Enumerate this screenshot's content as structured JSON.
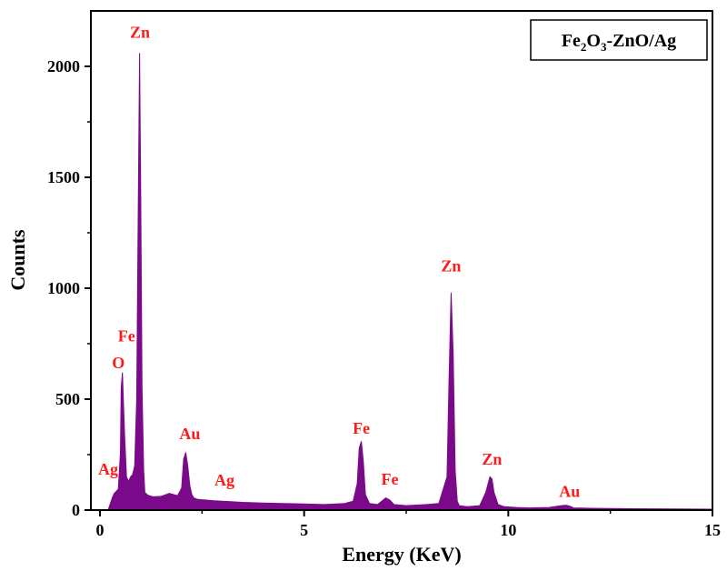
{
  "chart_data": {
    "type": "area",
    "title": "",
    "xlabel": "Energy (KeV)",
    "ylabel": "Counts",
    "xlim": [
      0,
      15
    ],
    "ylim": [
      0,
      2250
    ],
    "xticks": [
      0,
      5,
      10,
      15
    ],
    "yticks": [
      0,
      500,
      1000,
      1500,
      2000
    ],
    "grid": false,
    "legend_position": "top-right",
    "legend": {
      "main": "Fe",
      "sub1": "2",
      "mid": "O",
      "sub2": "3",
      "tail": "-ZnO/Ag"
    },
    "series": [
      {
        "x": [
          0.0,
          0.2,
          0.3,
          0.35,
          0.4,
          0.45,
          0.5,
          0.52,
          0.55,
          0.6,
          0.65,
          0.7,
          0.75,
          0.8,
          0.85,
          0.9,
          0.93,
          0.97,
          1.0,
          1.03,
          1.07,
          1.1,
          1.15,
          1.2,
          1.3,
          1.5,
          1.7,
          1.9,
          2.0,
          2.05,
          2.1,
          2.15,
          2.2,
          2.25,
          2.3,
          2.4,
          2.6,
          2.8,
          3.0,
          3.5,
          4.0,
          4.5,
          5.0,
          5.5,
          6.0,
          6.2,
          6.3,
          6.35,
          6.4,
          6.45,
          6.5,
          6.6,
          6.8,
          6.9,
          7.0,
          7.1,
          7.2,
          7.5,
          8.0,
          8.3,
          8.5,
          8.55,
          8.6,
          8.65,
          8.7,
          8.75,
          8.8,
          9.0,
          9.3,
          9.45,
          9.55,
          9.6,
          9.65,
          9.75,
          9.9,
          10.2,
          10.5,
          11.0,
          11.3,
          11.4,
          11.5,
          11.6,
          12.0,
          13.0,
          14.0,
          15.0
        ],
        "y": [
          0,
          0,
          55,
          75,
          85,
          95,
          260,
          550,
          620,
          350,
          150,
          130,
          150,
          160,
          200,
          500,
          1200,
          2060,
          1400,
          550,
          180,
          80,
          70,
          65,
          60,
          62,
          75,
          65,
          100,
          230,
          260,
          200,
          110,
          70,
          55,
          48,
          45,
          42,
          40,
          35,
          32,
          30,
          28,
          25,
          30,
          40,
          120,
          280,
          310,
          220,
          70,
          30,
          25,
          40,
          55,
          45,
          25,
          20,
          25,
          30,
          150,
          600,
          980,
          700,
          180,
          40,
          20,
          15,
          20,
          80,
          150,
          140,
          80,
          25,
          15,
          12,
          10,
          12,
          20,
          22,
          18,
          10,
          8,
          6,
          5,
          4
        ]
      }
    ],
    "peak_labels": [
      {
        "text": "Zn",
        "x": 0.98,
        "y": 2130
      },
      {
        "text": "Fe",
        "x": 0.65,
        "y": 760
      },
      {
        "text": "O",
        "x": 0.45,
        "y": 640
      },
      {
        "text": "Ag",
        "x": 0.2,
        "y": 160
      },
      {
        "text": "Au",
        "x": 2.2,
        "y": 320
      },
      {
        "text": "Ag",
        "x": 3.05,
        "y": 110
      },
      {
        "text": "Fe",
        "x": 6.4,
        "y": 345
      },
      {
        "text": "Fe",
        "x": 7.1,
        "y": 115
      },
      {
        "text": "Zn",
        "x": 8.6,
        "y": 1075
      },
      {
        "text": "Zn",
        "x": 9.6,
        "y": 205
      },
      {
        "text": "Au",
        "x": 11.5,
        "y": 60
      }
    ],
    "colors": {
      "spectrum": "#7a0a8a",
      "peak_label": "#ff1a1a",
      "axis": "#000000"
    }
  }
}
